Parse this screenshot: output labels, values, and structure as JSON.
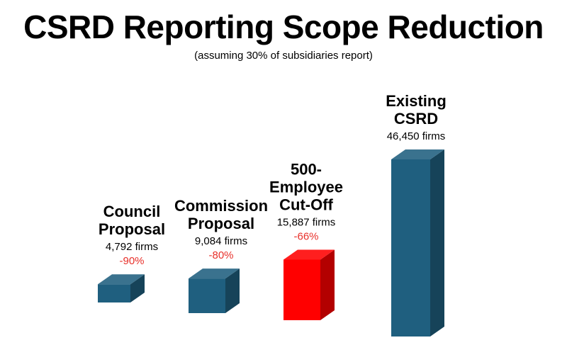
{
  "chart_data": {
    "type": "bar",
    "title": "CSRD Reporting Scope Reduction",
    "subtitle": "(assuming 30% of subsidiaries report)",
    "categories": [
      {
        "name_lines": [
          "Council",
          "Proposal"
        ],
        "firms_label": "4,792 firms",
        "change_label": "-90%"
      },
      {
        "name_lines": [
          "Commission",
          "Proposal"
        ],
        "firms_label": "9,084 firms",
        "change_label": "-80%"
      },
      {
        "name_lines": [
          "500-",
          "Employee",
          "Cut-Off"
        ],
        "firms_label": "15,887 firms",
        "change_label": "-66%"
      },
      {
        "name_lines": [
          "Existing",
          "CSRD"
        ],
        "firms_label": "46,450 firms",
        "change_label": ""
      }
    ],
    "values": [
      4792,
      9084,
      15887,
      46450
    ],
    "highlight_index": 2,
    "colors": {
      "bar_default": "#1f5f7f",
      "bar_highlight": "#ff0000",
      "change_text": "#e8302a"
    }
  }
}
